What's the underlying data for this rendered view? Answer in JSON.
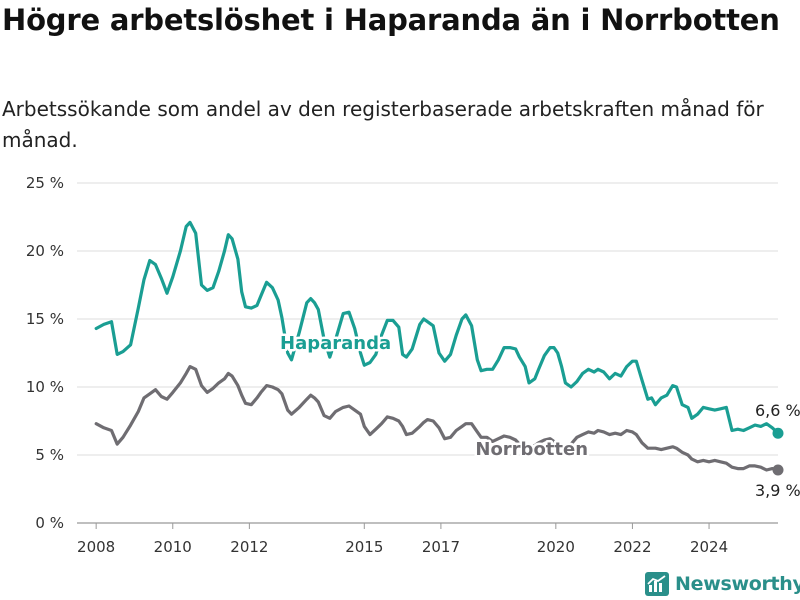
{
  "header": {
    "title": "Högre arbetslöshet i Haparanda än i Norrbotten",
    "subtitle": "Arbetssökande som andel av den registerbaserade arbetskraften månad för månad."
  },
  "brand": {
    "name": "Newsworthy",
    "icon": "newsworthy-logo-icon",
    "color": "#2a8f8a"
  },
  "chart_data": {
    "type": "line",
    "title": "Högre arbetslöshet i Haparanda än i Norrbotten",
    "subtitle": "Arbetssökande som andel av den registerbaserade arbetskraften månad för månad.",
    "xlabel": "",
    "ylabel": "",
    "xlim": [
      2007.5,
      2025.8
    ],
    "ylim": [
      0,
      25
    ],
    "y_ticks": [
      0,
      5,
      10,
      15,
      20,
      25
    ],
    "y_tick_labels": [
      "0 %",
      "5 %",
      "10 %",
      "15 %",
      "20 %",
      "25 %"
    ],
    "x_ticks": [
      2008,
      2010,
      2012,
      2015,
      2017,
      2020,
      2022,
      2024
    ],
    "x_tick_labels": [
      "2008",
      "2010",
      "2012",
      "2015",
      "2017",
      "2020",
      "2022",
      "2024"
    ],
    "grid": "horizontal",
    "legend": "inline labels",
    "series": [
      {
        "name": "Haparanda",
        "color": "#1a9e93",
        "label_at": [
          2012.8,
          13.3
        ],
        "end_label": "6,6 %",
        "points": [
          [
            2008.0,
            14.3
          ],
          [
            2008.2,
            14.6
          ],
          [
            2008.4,
            14.8
          ],
          [
            2008.55,
            12.4
          ],
          [
            2008.7,
            12.6
          ],
          [
            2008.9,
            13.1
          ],
          [
            2009.1,
            15.8
          ],
          [
            2009.25,
            17.9
          ],
          [
            2009.4,
            19.3
          ],
          [
            2009.55,
            19.0
          ],
          [
            2009.7,
            18.0
          ],
          [
            2009.85,
            16.9
          ],
          [
            2010.0,
            18.1
          ],
          [
            2010.2,
            20.0
          ],
          [
            2010.35,
            21.8
          ],
          [
            2010.45,
            22.1
          ],
          [
            2010.6,
            21.3
          ],
          [
            2010.75,
            17.5
          ],
          [
            2010.9,
            17.1
          ],
          [
            2011.05,
            17.3
          ],
          [
            2011.2,
            18.5
          ],
          [
            2011.35,
            20.0
          ],
          [
            2011.45,
            21.2
          ],
          [
            2011.55,
            20.9
          ],
          [
            2011.7,
            19.4
          ],
          [
            2011.8,
            17.0
          ],
          [
            2011.9,
            15.9
          ],
          [
            2012.05,
            15.8
          ],
          [
            2012.2,
            16.0
          ],
          [
            2012.3,
            16.7
          ],
          [
            2012.45,
            17.7
          ],
          [
            2012.6,
            17.3
          ],
          [
            2012.75,
            16.4
          ],
          [
            2012.85,
            15.1
          ],
          [
            2013.0,
            12.5
          ],
          [
            2013.1,
            12.0
          ],
          [
            2013.3,
            14.0
          ],
          [
            2013.5,
            16.2
          ],
          [
            2013.6,
            16.5
          ],
          [
            2013.7,
            16.2
          ],
          [
            2013.8,
            15.7
          ],
          [
            2013.95,
            13.5
          ],
          [
            2014.1,
            12.2
          ],
          [
            2014.25,
            13.5
          ],
          [
            2014.45,
            15.4
          ],
          [
            2014.6,
            15.5
          ],
          [
            2014.75,
            14.3
          ],
          [
            2014.9,
            12.5
          ],
          [
            2015.0,
            11.6
          ],
          [
            2015.15,
            11.8
          ],
          [
            2015.3,
            12.4
          ],
          [
            2015.45,
            13.8
          ],
          [
            2015.6,
            14.9
          ],
          [
            2015.75,
            14.9
          ],
          [
            2015.9,
            14.4
          ],
          [
            2016.0,
            12.4
          ],
          [
            2016.1,
            12.2
          ],
          [
            2016.25,
            12.8
          ],
          [
            2016.45,
            14.6
          ],
          [
            2016.55,
            15.0
          ],
          [
            2016.65,
            14.8
          ],
          [
            2016.8,
            14.5
          ],
          [
            2016.95,
            12.5
          ],
          [
            2017.1,
            11.9
          ],
          [
            2017.25,
            12.4
          ],
          [
            2017.4,
            13.8
          ],
          [
            2017.55,
            15.0
          ],
          [
            2017.65,
            15.3
          ],
          [
            2017.8,
            14.5
          ],
          [
            2017.95,
            12.0
          ],
          [
            2018.05,
            11.2
          ],
          [
            2018.2,
            11.3
          ],
          [
            2018.35,
            11.3
          ],
          [
            2018.5,
            12.0
          ],
          [
            2018.65,
            12.9
          ],
          [
            2018.8,
            12.9
          ],
          [
            2018.95,
            12.8
          ],
          [
            2019.05,
            12.2
          ],
          [
            2019.2,
            11.5
          ],
          [
            2019.3,
            10.3
          ],
          [
            2019.45,
            10.6
          ],
          [
            2019.55,
            11.3
          ],
          [
            2019.7,
            12.3
          ],
          [
            2019.85,
            12.9
          ],
          [
            2019.95,
            12.9
          ],
          [
            2020.05,
            12.5
          ],
          [
            2020.15,
            11.5
          ],
          [
            2020.25,
            10.3
          ],
          [
            2020.4,
            10.0
          ],
          [
            2020.55,
            10.4
          ],
          [
            2020.7,
            11.0
          ],
          [
            2020.85,
            11.3
          ],
          [
            2021.0,
            11.1
          ],
          [
            2021.1,
            11.3
          ],
          [
            2021.25,
            11.1
          ],
          [
            2021.4,
            10.6
          ],
          [
            2021.55,
            11.0
          ],
          [
            2021.7,
            10.8
          ],
          [
            2021.85,
            11.5
          ],
          [
            2022.0,
            11.9
          ],
          [
            2022.1,
            11.9
          ],
          [
            2022.25,
            10.5
          ],
          [
            2022.4,
            9.1
          ],
          [
            2022.5,
            9.2
          ],
          [
            2022.6,
            8.7
          ],
          [
            2022.75,
            9.2
          ],
          [
            2022.9,
            9.4
          ],
          [
            2023.05,
            10.1
          ],
          [
            2023.15,
            10.0
          ],
          [
            2023.3,
            8.7
          ],
          [
            2023.45,
            8.5
          ],
          [
            2023.55,
            7.7
          ],
          [
            2023.7,
            8.0
          ],
          [
            2023.85,
            8.5
          ],
          [
            2024.0,
            8.4
          ],
          [
            2024.15,
            8.3
          ],
          [
            2024.3,
            8.4
          ],
          [
            2024.45,
            8.5
          ],
          [
            2024.6,
            6.8
          ],
          [
            2024.75,
            6.9
          ],
          [
            2024.9,
            6.8
          ],
          [
            2025.05,
            7.0
          ],
          [
            2025.2,
            7.2
          ],
          [
            2025.35,
            7.1
          ],
          [
            2025.5,
            7.3
          ],
          [
            2025.65,
            7.0
          ],
          [
            2025.8,
            6.6
          ]
        ]
      },
      {
        "name": "Norrbotten",
        "color": "#6f6d72",
        "label_at": [
          2017.9,
          5.5
        ],
        "end_label": "3,9 %",
        "points": [
          [
            2008.0,
            7.3
          ],
          [
            2008.2,
            7.0
          ],
          [
            2008.4,
            6.8
          ],
          [
            2008.55,
            5.8
          ],
          [
            2008.7,
            6.3
          ],
          [
            2008.9,
            7.2
          ],
          [
            2009.1,
            8.2
          ],
          [
            2009.25,
            9.2
          ],
          [
            2009.4,
            9.5
          ],
          [
            2009.55,
            9.8
          ],
          [
            2009.7,
            9.3
          ],
          [
            2009.85,
            9.1
          ],
          [
            2010.0,
            9.6
          ],
          [
            2010.2,
            10.3
          ],
          [
            2010.35,
            11.0
          ],
          [
            2010.45,
            11.5
          ],
          [
            2010.6,
            11.3
          ],
          [
            2010.75,
            10.1
          ],
          [
            2010.9,
            9.6
          ],
          [
            2011.05,
            9.9
          ],
          [
            2011.2,
            10.3
          ],
          [
            2011.35,
            10.6
          ],
          [
            2011.45,
            11.0
          ],
          [
            2011.55,
            10.8
          ],
          [
            2011.7,
            10.1
          ],
          [
            2011.8,
            9.4
          ],
          [
            2011.9,
            8.8
          ],
          [
            2012.05,
            8.7
          ],
          [
            2012.2,
            9.2
          ],
          [
            2012.3,
            9.6
          ],
          [
            2012.45,
            10.1
          ],
          [
            2012.6,
            10.0
          ],
          [
            2012.75,
            9.8
          ],
          [
            2012.85,
            9.5
          ],
          [
            2013.0,
            8.3
          ],
          [
            2013.1,
            8.0
          ],
          [
            2013.3,
            8.5
          ],
          [
            2013.5,
            9.1
          ],
          [
            2013.6,
            9.4
          ],
          [
            2013.7,
            9.2
          ],
          [
            2013.8,
            8.9
          ],
          [
            2013.95,
            7.9
          ],
          [
            2014.1,
            7.7
          ],
          [
            2014.25,
            8.2
          ],
          [
            2014.45,
            8.5
          ],
          [
            2014.6,
            8.6
          ],
          [
            2014.75,
            8.3
          ],
          [
            2014.9,
            8.0
          ],
          [
            2015.0,
            7.1
          ],
          [
            2015.15,
            6.5
          ],
          [
            2015.3,
            6.9
          ],
          [
            2015.45,
            7.3
          ],
          [
            2015.6,
            7.8
          ],
          [
            2015.75,
            7.7
          ],
          [
            2015.9,
            7.5
          ],
          [
            2016.0,
            7.1
          ],
          [
            2016.1,
            6.5
          ],
          [
            2016.25,
            6.6
          ],
          [
            2016.45,
            7.1
          ],
          [
            2016.55,
            7.4
          ],
          [
            2016.65,
            7.6
          ],
          [
            2016.8,
            7.5
          ],
          [
            2016.95,
            7.0
          ],
          [
            2017.1,
            6.2
          ],
          [
            2017.25,
            6.3
          ],
          [
            2017.4,
            6.8
          ],
          [
            2017.55,
            7.1
          ],
          [
            2017.65,
            7.3
          ],
          [
            2017.8,
            7.3
          ],
          [
            2017.95,
            6.7
          ],
          [
            2018.05,
            6.3
          ],
          [
            2018.2,
            6.3
          ],
          [
            2018.35,
            6.0
          ],
          [
            2018.5,
            6.2
          ],
          [
            2018.65,
            6.4
          ],
          [
            2018.8,
            6.3
          ],
          [
            2018.95,
            6.1
          ],
          [
            2019.05,
            5.8
          ],
          [
            2019.2,
            5.5
          ],
          [
            2019.3,
            5.5
          ],
          [
            2019.45,
            5.7
          ],
          [
            2019.55,
            5.9
          ],
          [
            2019.7,
            6.1
          ],
          [
            2019.85,
            6.2
          ],
          [
            2019.95,
            6.0
          ],
          [
            2020.05,
            5.8
          ],
          [
            2020.15,
            5.6
          ],
          [
            2020.25,
            5.5
          ],
          [
            2020.4,
            5.8
          ],
          [
            2020.55,
            6.3
          ],
          [
            2020.7,
            6.5
          ],
          [
            2020.85,
            6.7
          ],
          [
            2021.0,
            6.6
          ],
          [
            2021.1,
            6.8
          ],
          [
            2021.25,
            6.7
          ],
          [
            2021.4,
            6.5
          ],
          [
            2021.55,
            6.6
          ],
          [
            2021.7,
            6.5
          ],
          [
            2021.85,
            6.8
          ],
          [
            2022.0,
            6.7
          ],
          [
            2022.1,
            6.5
          ],
          [
            2022.25,
            5.9
          ],
          [
            2022.4,
            5.5
          ],
          [
            2022.5,
            5.5
          ],
          [
            2022.6,
            5.5
          ],
          [
            2022.75,
            5.4
          ],
          [
            2022.9,
            5.5
          ],
          [
            2023.05,
            5.6
          ],
          [
            2023.15,
            5.5
          ],
          [
            2023.3,
            5.2
          ],
          [
            2023.45,
            5.0
          ],
          [
            2023.55,
            4.7
          ],
          [
            2023.7,
            4.5
          ],
          [
            2023.85,
            4.6
          ],
          [
            2024.0,
            4.5
          ],
          [
            2024.15,
            4.6
          ],
          [
            2024.3,
            4.5
          ],
          [
            2024.45,
            4.4
          ],
          [
            2024.6,
            4.1
          ],
          [
            2024.75,
            4.0
          ],
          [
            2024.9,
            4.0
          ],
          [
            2025.05,
            4.2
          ],
          [
            2025.2,
            4.2
          ],
          [
            2025.35,
            4.1
          ],
          [
            2025.5,
            3.9
          ],
          [
            2025.65,
            4.0
          ],
          [
            2025.8,
            3.9
          ]
        ]
      }
    ]
  }
}
